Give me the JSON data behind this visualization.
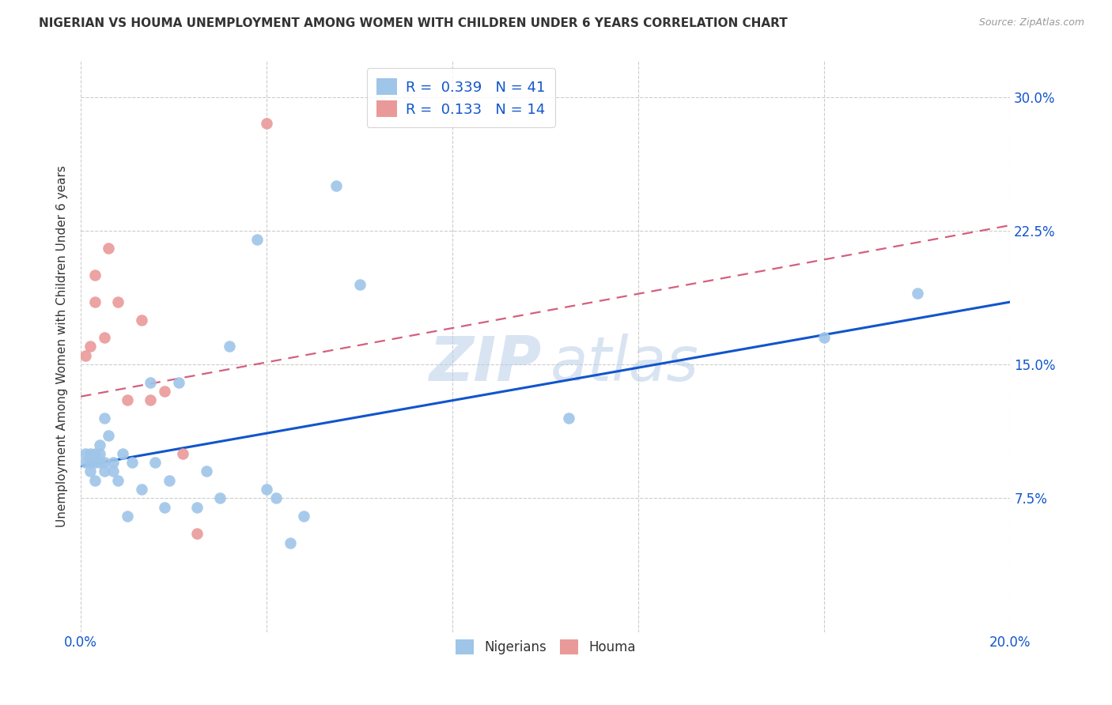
{
  "title": "NIGERIAN VS HOUMA UNEMPLOYMENT AMONG WOMEN WITH CHILDREN UNDER 6 YEARS CORRELATION CHART",
  "source": "Source: ZipAtlas.com",
  "ylabel": "Unemployment Among Women with Children Under 6 years",
  "xlim": [
    0.0,
    0.2
  ],
  "ylim": [
    0.0,
    0.32
  ],
  "xtick_positions": [
    0.0,
    0.04,
    0.08,
    0.12,
    0.16,
    0.2
  ],
  "xtick_labels": [
    "0.0%",
    "",
    "",
    "",
    "",
    "20.0%"
  ],
  "ytick_positions": [
    0.075,
    0.15,
    0.225,
    0.3
  ],
  "ytick_labels": [
    "7.5%",
    "15.0%",
    "22.5%",
    "30.0%"
  ],
  "watermark_zip": "ZIP",
  "watermark_atlas": "atlas",
  "legend_r1": "0.339",
  "legend_n1": "41",
  "legend_r2": "0.133",
  "legend_n2": "14",
  "nigerian_color": "#9fc5e8",
  "houma_color": "#ea9999",
  "nigerian_line_color": "#1155cc",
  "houma_line_color": "#cc4466",
  "nigerian_x": [
    0.001,
    0.001,
    0.002,
    0.002,
    0.002,
    0.003,
    0.003,
    0.003,
    0.004,
    0.004,
    0.004,
    0.005,
    0.005,
    0.005,
    0.006,
    0.007,
    0.007,
    0.008,
    0.009,
    0.01,
    0.011,
    0.013,
    0.015,
    0.016,
    0.018,
    0.019,
    0.021,
    0.025,
    0.027,
    0.03,
    0.032,
    0.038,
    0.04,
    0.042,
    0.045,
    0.048,
    0.055,
    0.06,
    0.105,
    0.16,
    0.18
  ],
  "nigerian_y": [
    0.095,
    0.1,
    0.09,
    0.1,
    0.095,
    0.085,
    0.095,
    0.1,
    0.1,
    0.105,
    0.095,
    0.09,
    0.095,
    0.12,
    0.11,
    0.09,
    0.095,
    0.085,
    0.1,
    0.065,
    0.095,
    0.08,
    0.14,
    0.095,
    0.07,
    0.085,
    0.14,
    0.07,
    0.09,
    0.075,
    0.16,
    0.22,
    0.08,
    0.075,
    0.05,
    0.065,
    0.25,
    0.195,
    0.12,
    0.165,
    0.19
  ],
  "houma_x": [
    0.001,
    0.002,
    0.003,
    0.003,
    0.005,
    0.006,
    0.008,
    0.01,
    0.013,
    0.015,
    0.018,
    0.022,
    0.025,
    0.04
  ],
  "houma_y": [
    0.155,
    0.16,
    0.185,
    0.2,
    0.165,
    0.215,
    0.185,
    0.13,
    0.175,
    0.13,
    0.135,
    0.1,
    0.055,
    0.285
  ],
  "nigerian_trend_x": [
    0.0,
    0.2
  ],
  "nigerian_trend_y": [
    0.093,
    0.185
  ],
  "houma_trend_x": [
    0.0,
    0.045
  ],
  "houma_trend_y": [
    0.135,
    0.165
  ],
  "bg_color": "#ffffff",
  "grid_color": "#cccccc",
  "text_color_blue": "#1155cc",
  "text_color_dark": "#333333",
  "text_color_source": "#999999"
}
